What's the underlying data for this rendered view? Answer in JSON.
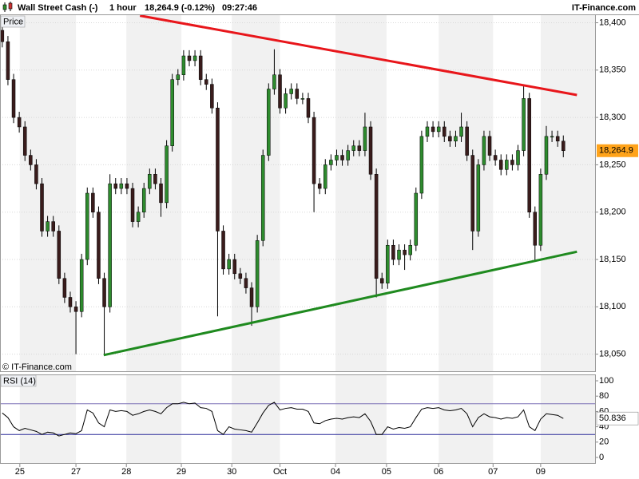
{
  "header": {
    "instrument": "Wall Street Cash (-)",
    "interval": "1 hour",
    "quote": "18,264.9 (-0.12%)",
    "time": "09:27:46",
    "brand": "IT-Finance.com"
  },
  "chart_data": [
    {
      "type": "candlestick",
      "panel_label": "Price",
      "watermark": "© IT-Finance.com",
      "up_color": "#2e8b2e",
      "down_color": "#3a1c1c",
      "open": [
        18392,
        18380,
        18340,
        18300,
        18290,
        18260,
        18250,
        18230,
        18180,
        18190,
        18180,
        18130,
        18110,
        18100,
        18095,
        18150,
        18220,
        18200,
        18130,
        18100,
        18230,
        18225,
        18230,
        18225,
        18190,
        18200,
        18225,
        18240,
        18230,
        18210,
        18270,
        18340,
        18345,
        18365,
        18360,
        18365,
        18340,
        18335,
        18310,
        18180,
        18140,
        18150,
        18135,
        18130,
        18120,
        18100,
        18170,
        18260,
        18330,
        18345,
        18310,
        18325,
        18330,
        18320,
        18320,
        18300,
        18230,
        18225,
        18250,
        18255,
        18260,
        18255,
        18265,
        18270,
        18265,
        18290,
        18240,
        18130,
        18125,
        18165,
        18150,
        18160,
        18155,
        18165,
        18220,
        18280,
        18290,
        18285,
        18290,
        18280,
        18275,
        18280,
        18290,
        18260,
        18180,
        18250,
        18280,
        18260,
        18255,
        18245,
        18255,
        18250,
        18265,
        18320,
        18200,
        18165,
        18240,
        18280,
        18280,
        18275
      ],
      "high": [
        18398,
        18386,
        18346,
        18306,
        18296,
        18266,
        18256,
        18236,
        18196,
        18196,
        18186,
        18136,
        18116,
        18106,
        18156,
        18226,
        18226,
        18206,
        18136,
        18240,
        18236,
        18236,
        18236,
        18231,
        18206,
        18231,
        18246,
        18246,
        18236,
        18276,
        18346,
        18351,
        18371,
        18371,
        18371,
        18371,
        18346,
        18341,
        18316,
        18186,
        18156,
        18156,
        18141,
        18136,
        18126,
        18176,
        18266,
        18336,
        18372,
        18351,
        18331,
        18336,
        18336,
        18326,
        18326,
        18306,
        18236,
        18256,
        18261,
        18266,
        18266,
        18271,
        18276,
        18276,
        18305,
        18296,
        18246,
        18136,
        18171,
        18171,
        18166,
        18166,
        18171,
        18226,
        18286,
        18296,
        18296,
        18296,
        18296,
        18286,
        18286,
        18305,
        18296,
        18266,
        18256,
        18286,
        18286,
        18266,
        18261,
        18261,
        18261,
        18271,
        18335,
        18326,
        18206,
        18246,
        18291,
        18286,
        18286,
        18281
      ],
      "low": [
        18374,
        18334,
        18294,
        18284,
        18254,
        18244,
        18224,
        18174,
        18174,
        18174,
        18124,
        18104,
        18094,
        18050,
        18089,
        18144,
        18194,
        18124,
        18048,
        18094,
        18219,
        18219,
        18219,
        18184,
        18184,
        18194,
        18219,
        18224,
        18195,
        18204,
        18264,
        18334,
        18339,
        18354,
        18354,
        18334,
        18329,
        18304,
        18090,
        18134,
        18134,
        18129,
        18124,
        18114,
        18080,
        18094,
        18164,
        18254,
        18324,
        18304,
        18304,
        18319,
        18314,
        18314,
        18294,
        18200,
        18219,
        18219,
        18244,
        18249,
        18249,
        18249,
        18259,
        18259,
        18259,
        18234,
        18110,
        18119,
        18119,
        18144,
        18144,
        18139,
        18149,
        18159,
        18214,
        18274,
        18279,
        18279,
        18274,
        18269,
        18269,
        18274,
        18254,
        18160,
        18174,
        18244,
        18254,
        18249,
        18239,
        18239,
        18244,
        18244,
        18259,
        18194,
        18148,
        18159,
        18234,
        18274,
        18269,
        18258
      ],
      "close": [
        18380,
        18340,
        18300,
        18290,
        18260,
        18250,
        18230,
        18180,
        18190,
        18180,
        18130,
        18110,
        18100,
        18095,
        18150,
        18220,
        18200,
        18130,
        18100,
        18230,
        18225,
        18230,
        18225,
        18190,
        18200,
        18225,
        18240,
        18230,
        18210,
        18270,
        18340,
        18345,
        18365,
        18360,
        18365,
        18340,
        18335,
        18310,
        18180,
        18140,
        18150,
        18135,
        18130,
        18120,
        18100,
        18170,
        18260,
        18330,
        18345,
        18310,
        18325,
        18330,
        18320,
        18320,
        18300,
        18230,
        18225,
        18250,
        18255,
        18260,
        18255,
        18265,
        18270,
        18265,
        18290,
        18240,
        18130,
        18125,
        18165,
        18150,
        18160,
        18155,
        18165,
        18220,
        18280,
        18290,
        18285,
        18290,
        18280,
        18275,
        18280,
        18290,
        18260,
        18180,
        18250,
        18280,
        18260,
        18255,
        18245,
        18255,
        18250,
        18265,
        18320,
        18200,
        18165,
        18240,
        18280,
        18280,
        18275,
        18264.9
      ],
      "last_value_label": "18,264.9",
      "last_value_color": "#ffa31a",
      "xlim": [
        -0.4,
        104.6
      ],
      "xticks": [
        {
          "value": 3.1,
          "label": "25"
        },
        {
          "value": 13.0,
          "label": "27"
        },
        {
          "value": 21.9,
          "label": "28"
        },
        {
          "value": 31.6,
          "label": "29"
        },
        {
          "value": 40.5,
          "label": "30"
        },
        {
          "value": 49.0,
          "label": "Oct"
        },
        {
          "value": 58.8,
          "label": "04"
        },
        {
          "value": 67.8,
          "label": "05"
        },
        {
          "value": 77.0,
          "label": "06"
        },
        {
          "value": 86.6,
          "label": "07"
        },
        {
          "value": 95.0,
          "label": "09"
        }
      ],
      "ylim": [
        18032,
        18408
      ],
      "yticks": [
        {
          "value": 18050,
          "label": "18,050"
        },
        {
          "value": 18100,
          "label": "18,100"
        },
        {
          "value": 18150,
          "label": "18,150"
        },
        {
          "value": 18200,
          "label": "18,200"
        },
        {
          "value": 18250,
          "label": "18,250"
        },
        {
          "value": 18300,
          "label": "18,300"
        },
        {
          "value": 18350,
          "label": "18,350"
        },
        {
          "value": 18400,
          "label": "18,400"
        }
      ],
      "grid": true,
      "trendlines": [
        {
          "color": "#e8161b",
          "x": [
            24.3,
            101.4
          ],
          "y": [
            18407.5,
            18323.7
          ]
        },
        {
          "color": "#1f8a1f",
          "x": [
            17.9,
            101.4
          ],
          "y": [
            18049,
            18158.2
          ]
        }
      ]
    },
    {
      "type": "line",
      "panel_label": "RSI (14)",
      "color": "#000000",
      "values": [
        58,
        52,
        40,
        35,
        38,
        36,
        34,
        30,
        33,
        32,
        28,
        30,
        32,
        31,
        35,
        62,
        58,
        45,
        40,
        62,
        60,
        61,
        60,
        55,
        57,
        60,
        62,
        60,
        57,
        65,
        70,
        70,
        72,
        70,
        71,
        65,
        64,
        60,
        35,
        30,
        40,
        37,
        36,
        35,
        33,
        45,
        58,
        68,
        72,
        62,
        64,
        65,
        63,
        63,
        60,
        45,
        44,
        48,
        50,
        51,
        50,
        52,
        53,
        52,
        57,
        47,
        30,
        30,
        40,
        37,
        39,
        38,
        40,
        52,
        63,
        65,
        64,
        65,
        62,
        61,
        62,
        64,
        57,
        40,
        52,
        57,
        53,
        52,
        50,
        52,
        51,
        53,
        62,
        40,
        35,
        50,
        57,
        56,
        55,
        50.836
      ],
      "last_value_label": "50.836",
      "levels": [
        70,
        30
      ],
      "level_colors": [
        "#7a6fb5",
        "#2a2a9a"
      ],
      "ylim": [
        -7.3,
        107.3
      ],
      "yticks": [
        0,
        20,
        40,
        60,
        80,
        100
      ]
    }
  ]
}
